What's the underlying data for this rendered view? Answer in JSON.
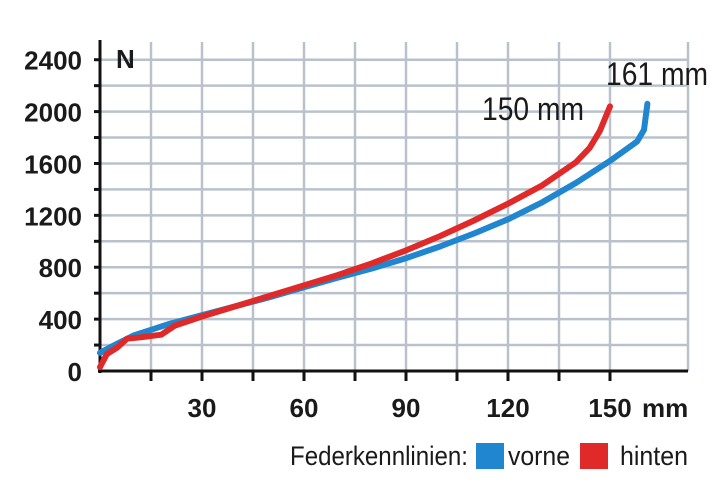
{
  "chart_data": {
    "type": "line",
    "title": "",
    "xlabel": "",
    "ylabel": "",
    "y_unit": "N",
    "x_unit": "mm",
    "xlim": [
      0,
      160
    ],
    "ylim": [
      0,
      2500
    ],
    "grid": true,
    "x_major_ticks": [
      30,
      60,
      90,
      120,
      150
    ],
    "x_minor_ticks": [
      15,
      45,
      75,
      105,
      135
    ],
    "y_ticks": [
      0,
      400,
      800,
      1200,
      1600,
      2000,
      2400
    ],
    "legend_position": "bottom-right",
    "legend_title": "Federkennlinien:",
    "series": [
      {
        "name": "vorne",
        "color": "#1f86cf",
        "end_label": "161 mm",
        "points": [
          [
            0,
            140
          ],
          [
            5,
            210
          ],
          [
            10,
            275
          ],
          [
            20,
            360
          ],
          [
            30,
            430
          ],
          [
            40,
            500
          ],
          [
            50,
            570
          ],
          [
            60,
            645
          ],
          [
            70,
            720
          ],
          [
            80,
            790
          ],
          [
            90,
            870
          ],
          [
            100,
            960
          ],
          [
            110,
            1060
          ],
          [
            120,
            1170
          ],
          [
            130,
            1300
          ],
          [
            140,
            1450
          ],
          [
            150,
            1620
          ],
          [
            158,
            1770
          ],
          [
            160,
            1860
          ],
          [
            161,
            2060
          ]
        ]
      },
      {
        "name": "hinten",
        "color": "#e02a2a",
        "end_label": "150 mm",
        "points": [
          [
            0,
            30
          ],
          [
            2,
            130
          ],
          [
            5,
            180
          ],
          [
            8,
            250
          ],
          [
            12,
            260
          ],
          [
            18,
            280
          ],
          [
            22,
            350
          ],
          [
            30,
            420
          ],
          [
            40,
            500
          ],
          [
            50,
            580
          ],
          [
            60,
            660
          ],
          [
            70,
            740
          ],
          [
            80,
            830
          ],
          [
            90,
            930
          ],
          [
            100,
            1040
          ],
          [
            110,
            1160
          ],
          [
            120,
            1290
          ],
          [
            130,
            1430
          ],
          [
            140,
            1610
          ],
          [
            144,
            1720
          ],
          [
            147,
            1850
          ],
          [
            150,
            2040
          ]
        ]
      }
    ]
  }
}
